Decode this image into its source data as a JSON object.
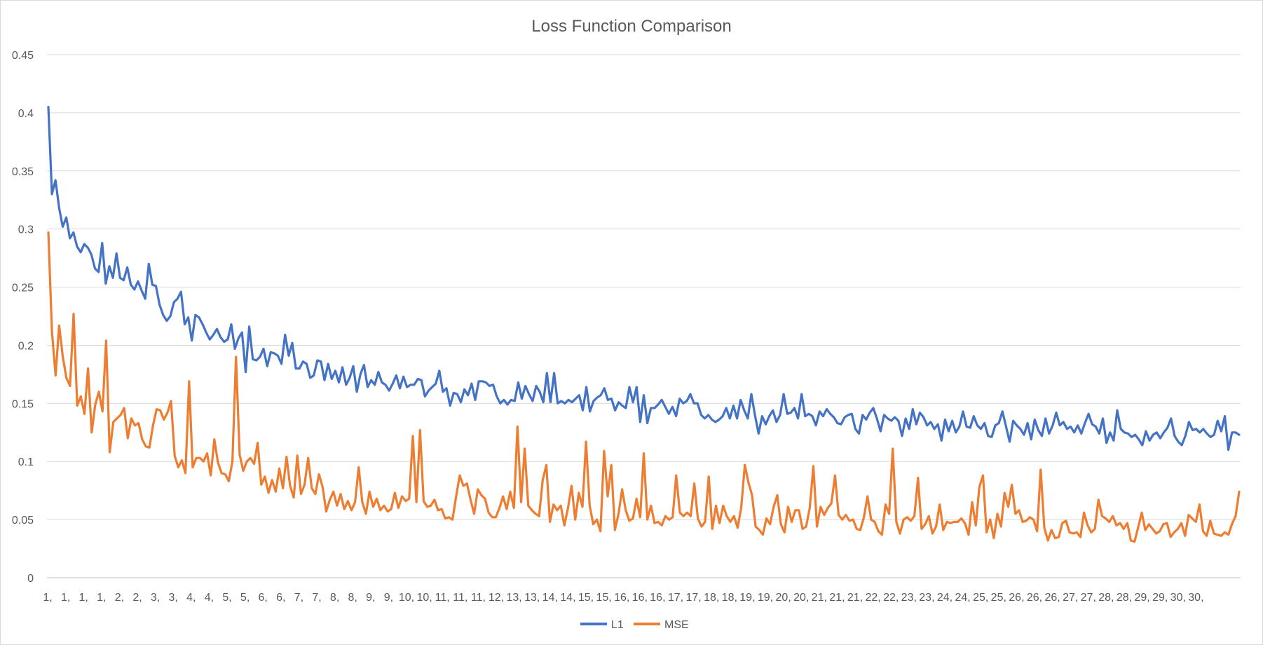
{
  "chart_data": {
    "type": "line",
    "title": "Loss Function Comparison",
    "xlabel": "",
    "ylabel": "",
    "ylim": [
      0,
      0.45
    ],
    "yticks": [
      "0",
      "0.05",
      "0.1",
      "0.15",
      "0.2",
      "0.25",
      "0.3",
      "0.35",
      "0.4",
      "0.45"
    ],
    "xticks": [
      "1,",
      "1,",
      "1,",
      "1,",
      "2,",
      "2,",
      "3,",
      "3,",
      "4,",
      "4,",
      "5,",
      "5,",
      "6,",
      "6,",
      "7,",
      "7,",
      "8,",
      "8,",
      "9,",
      "9,",
      "10,",
      "10,",
      "11,",
      "11,",
      "11,",
      "12,",
      "13,",
      "13,",
      "14,",
      "14,",
      "15,",
      "15,",
      "16,",
      "16,",
      "16,",
      "17,",
      "17,",
      "18,",
      "18,",
      "19,",
      "19,",
      "20,",
      "20,",
      "21,",
      "21,",
      "21,",
      "22,",
      "22,",
      "23,",
      "23,",
      "24,",
      "24,",
      "25,",
      "25,",
      "26,",
      "26,",
      "26,",
      "27,",
      "27,",
      "28,",
      "28,",
      "29,",
      "29,",
      "30,",
      "30,"
    ],
    "grid": true,
    "legend_position": "bottom",
    "series": [
      {
        "name": "L1",
        "color": "#4472C4",
        "values": [
          0.405,
          0.33,
          0.342,
          0.318,
          0.302,
          0.31,
          0.292,
          0.297,
          0.285,
          0.28,
          0.287,
          0.284,
          0.278,
          0.266,
          0.263,
          0.288,
          0.253,
          0.268,
          0.258,
          0.279,
          0.258,
          0.256,
          0.267,
          0.252,
          0.248,
          0.255,
          0.247,
          0.24,
          0.27,
          0.252,
          0.251,
          0.235,
          0.226,
          0.221,
          0.225,
          0.237,
          0.24,
          0.246,
          0.218,
          0.224,
          0.204,
          0.226,
          0.224,
          0.218,
          0.211,
          0.205,
          0.209,
          0.214,
          0.207,
          0.203,
          0.205,
          0.218,
          0.197,
          0.206,
          0.211,
          0.177,
          0.216,
          0.188,
          0.187,
          0.19,
          0.197,
          0.182,
          0.194,
          0.193,
          0.191,
          0.184,
          0.209,
          0.191,
          0.202,
          0.18,
          0.18,
          0.186,
          0.184,
          0.172,
          0.174,
          0.187,
          0.186,
          0.17,
          0.184,
          0.171,
          0.178,
          0.168,
          0.181,
          0.166,
          0.172,
          0.182,
          0.16,
          0.175,
          0.183,
          0.164,
          0.17,
          0.166,
          0.177,
          0.168,
          0.166,
          0.161,
          0.167,
          0.174,
          0.163,
          0.173,
          0.164,
          0.166,
          0.166,
          0.171,
          0.17,
          0.156,
          0.161,
          0.164,
          0.167,
          0.178,
          0.16,
          0.163,
          0.148,
          0.159,
          0.158,
          0.151,
          0.162,
          0.157,
          0.167,
          0.153,
          0.169,
          0.169,
          0.168,
          0.165,
          0.166,
          0.156,
          0.15,
          0.153,
          0.149,
          0.153,
          0.152,
          0.168,
          0.154,
          0.165,
          0.158,
          0.152,
          0.165,
          0.16,
          0.151,
          0.176,
          0.151,
          0.176,
          0.15,
          0.152,
          0.15,
          0.153,
          0.151,
          0.154,
          0.157,
          0.144,
          0.164,
          0.143,
          0.152,
          0.155,
          0.157,
          0.163,
          0.153,
          0.154,
          0.144,
          0.151,
          0.148,
          0.146,
          0.164,
          0.151,
          0.164,
          0.134,
          0.157,
          0.133,
          0.146,
          0.146,
          0.149,
          0.153,
          0.147,
          0.141,
          0.147,
          0.139,
          0.154,
          0.15,
          0.152,
          0.158,
          0.15,
          0.15,
          0.14,
          0.137,
          0.14,
          0.136,
          0.134,
          0.136,
          0.139,
          0.146,
          0.137,
          0.148,
          0.137,
          0.153,
          0.144,
          0.137,
          0.158,
          0.14,
          0.124,
          0.139,
          0.132,
          0.139,
          0.144,
          0.134,
          0.14,
          0.158,
          0.141,
          0.142,
          0.146,
          0.137,
          0.158,
          0.139,
          0.141,
          0.139,
          0.131,
          0.143,
          0.139,
          0.145,
          0.141,
          0.138,
          0.133,
          0.132,
          0.138,
          0.14,
          0.141,
          0.128,
          0.124,
          0.14,
          0.136,
          0.142,
          0.146,
          0.137,
          0.126,
          0.14,
          0.137,
          0.135,
          0.138,
          0.135,
          0.122,
          0.137,
          0.128,
          0.145,
          0.132,
          0.142,
          0.138,
          0.131,
          0.134,
          0.128,
          0.132,
          0.118,
          0.136,
          0.126,
          0.135,
          0.125,
          0.13,
          0.143,
          0.13,
          0.129,
          0.139,
          0.131,
          0.128,
          0.133,
          0.122,
          0.121,
          0.131,
          0.133,
          0.143,
          0.13,
          0.117,
          0.135,
          0.131,
          0.128,
          0.123,
          0.133,
          0.119,
          0.136,
          0.127,
          0.122,
          0.137,
          0.124,
          0.131,
          0.142,
          0.131,
          0.134,
          0.128,
          0.13,
          0.125,
          0.131,
          0.124,
          0.133,
          0.141,
          0.132,
          0.13,
          0.124,
          0.137,
          0.116,
          0.125,
          0.118,
          0.144,
          0.128,
          0.125,
          0.124,
          0.121,
          0.123,
          0.119,
          0.114,
          0.126,
          0.118,
          0.123,
          0.125,
          0.12,
          0.125,
          0.129,
          0.137,
          0.122,
          0.117,
          0.114,
          0.122,
          0.134,
          0.127,
          0.128,
          0.125,
          0.128,
          0.124,
          0.121,
          0.123,
          0.135,
          0.126,
          0.139,
          0.11,
          0.125,
          0.125,
          0.123
        ]
      },
      {
        "name": "MSE",
        "color": "#ED7D31",
        "values": [
          0.297,
          0.212,
          0.174,
          0.217,
          0.19,
          0.172,
          0.165,
          0.227,
          0.148,
          0.156,
          0.141,
          0.18,
          0.125,
          0.149,
          0.16,
          0.143,
          0.204,
          0.108,
          0.134,
          0.137,
          0.14,
          0.146,
          0.12,
          0.137,
          0.131,
          0.133,
          0.119,
          0.113,
          0.112,
          0.131,
          0.145,
          0.144,
          0.136,
          0.142,
          0.152,
          0.105,
          0.095,
          0.101,
          0.09,
          0.169,
          0.095,
          0.103,
          0.103,
          0.1,
          0.107,
          0.088,
          0.119,
          0.099,
          0.09,
          0.089,
          0.083,
          0.1,
          0.19,
          0.106,
          0.092,
          0.1,
          0.103,
          0.098,
          0.116,
          0.08,
          0.087,
          0.073,
          0.084,
          0.074,
          0.094,
          0.077,
          0.104,
          0.079,
          0.069,
          0.105,
          0.072,
          0.08,
          0.103,
          0.077,
          0.072,
          0.089,
          0.078,
          0.057,
          0.067,
          0.074,
          0.062,
          0.072,
          0.059,
          0.066,
          0.058,
          0.065,
          0.095,
          0.065,
          0.055,
          0.074,
          0.061,
          0.068,
          0.058,
          0.062,
          0.057,
          0.059,
          0.073,
          0.06,
          0.07,
          0.066,
          0.068,
          0.122,
          0.065,
          0.127,
          0.066,
          0.061,
          0.062,
          0.067,
          0.058,
          0.059,
          0.051,
          0.052,
          0.05,
          0.07,
          0.088,
          0.079,
          0.081,
          0.067,
          0.055,
          0.076,
          0.071,
          0.068,
          0.056,
          0.052,
          0.052,
          0.06,
          0.07,
          0.059,
          0.074,
          0.06,
          0.13,
          0.065,
          0.111,
          0.062,
          0.058,
          0.055,
          0.053,
          0.084,
          0.097,
          0.048,
          0.063,
          0.058,
          0.062,
          0.045,
          0.06,
          0.079,
          0.05,
          0.073,
          0.061,
          0.117,
          0.062,
          0.046,
          0.05,
          0.04,
          0.109,
          0.07,
          0.097,
          0.041,
          0.055,
          0.076,
          0.058,
          0.049,
          0.051,
          0.068,
          0.052,
          0.107,
          0.05,
          0.062,
          0.047,
          0.048,
          0.045,
          0.053,
          0.05,
          0.052,
          0.088,
          0.056,
          0.053,
          0.056,
          0.053,
          0.081,
          0.051,
          0.044,
          0.048,
          0.087,
          0.042,
          0.062,
          0.047,
          0.062,
          0.053,
          0.048,
          0.053,
          0.043,
          0.06,
          0.097,
          0.082,
          0.071,
          0.044,
          0.041,
          0.037,
          0.051,
          0.046,
          0.061,
          0.071,
          0.046,
          0.039,
          0.061,
          0.048,
          0.058,
          0.058,
          0.042,
          0.044,
          0.06,
          0.096,
          0.044,
          0.061,
          0.054,
          0.06,
          0.064,
          0.088,
          0.054,
          0.05,
          0.054,
          0.049,
          0.05,
          0.042,
          0.041,
          0.052,
          0.07,
          0.05,
          0.048,
          0.04,
          0.037,
          0.063,
          0.055,
          0.111,
          0.048,
          0.038,
          0.05,
          0.052,
          0.049,
          0.053,
          0.086,
          0.042,
          0.046,
          0.053,
          0.038,
          0.044,
          0.063,
          0.041,
          0.048,
          0.047,
          0.048,
          0.048,
          0.051,
          0.047,
          0.037,
          0.065,
          0.045,
          0.078,
          0.088,
          0.039,
          0.05,
          0.034,
          0.055,
          0.044,
          0.073,
          0.061,
          0.08,
          0.055,
          0.058,
          0.048,
          0.049,
          0.052,
          0.05,
          0.04,
          0.093,
          0.043,
          0.032,
          0.041,
          0.034,
          0.035,
          0.047,
          0.049,
          0.039,
          0.038,
          0.039,
          0.035,
          0.056,
          0.045,
          0.039,
          0.042,
          0.067,
          0.053,
          0.051,
          0.048,
          0.053,
          0.045,
          0.047,
          0.042,
          0.047,
          0.032,
          0.031,
          0.043,
          0.056,
          0.041,
          0.046,
          0.042,
          0.038,
          0.04,
          0.046,
          0.047,
          0.035,
          0.039,
          0.042,
          0.047,
          0.036,
          0.054,
          0.051,
          0.048,
          0.063,
          0.04,
          0.036,
          0.049,
          0.038,
          0.037,
          0.036,
          0.039,
          0.037,
          0.046,
          0.053,
          0.074
        ]
      }
    ]
  }
}
